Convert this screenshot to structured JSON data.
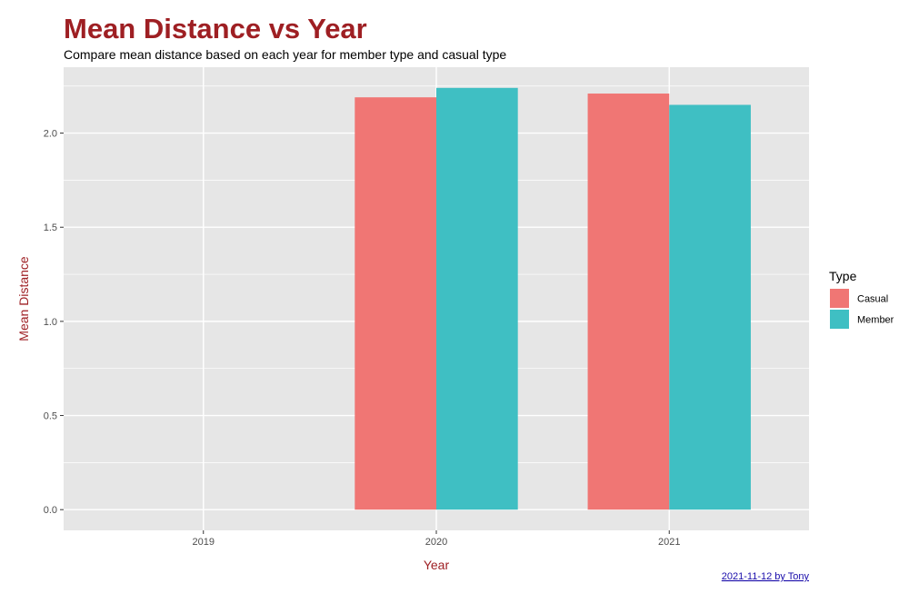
{
  "chart_data": {
    "type": "bar",
    "title": "Mean Distance vs Year",
    "subtitle": "Compare mean distance based on each year for member type and casual type",
    "xlabel": "Year",
    "ylabel": "Mean Distance",
    "categories": [
      "2019",
      "2020",
      "2021"
    ],
    "series": [
      {
        "name": "Casual",
        "values": [
          null,
          2.19,
          2.21
        ]
      },
      {
        "name": "Member",
        "values": [
          null,
          2.24,
          2.15
        ]
      }
    ],
    "ylim": [
      -0.11,
      2.35
    ],
    "yticks": [
      0.0,
      0.5,
      1.0,
      1.5,
      2.0
    ],
    "ytick_labels": [
      "0.0",
      "0.5",
      "1.0",
      "1.5",
      "2.0"
    ],
    "grid": true,
    "legend": {
      "title": "Type",
      "position": "right"
    },
    "caption": "2021-11-12 by Tony",
    "colors": {
      "title": "#9e1f23",
      "axis_title": "#9e1f23",
      "panel_background": "#e6e6e6",
      "grid": "#ffffff",
      "caption": "#1a0dab",
      "series": [
        "#f07674",
        "#3fbfc3"
      ]
    }
  }
}
